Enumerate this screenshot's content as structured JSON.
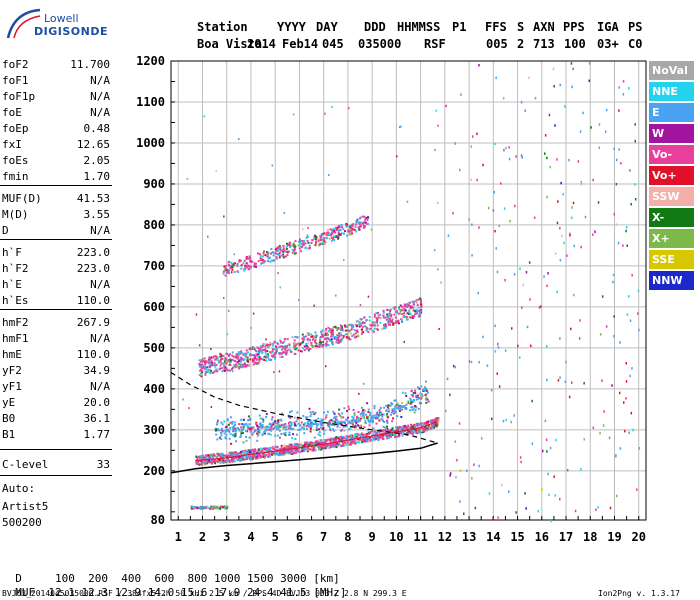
{
  "logo": {
    "line1": "Lowell",
    "line2": "DIGISONDE"
  },
  "header": {
    "labels": [
      "Station",
      "YYYY",
      "DAY",
      "DDD",
      "HHMMSS",
      "P1",
      "FFS",
      "S",
      "AXN",
      "PPS",
      "IGA",
      "PS"
    ],
    "values": [
      "Boa Vista",
      "2014",
      "Feb14",
      "045",
      "035000",
      "RSF",
      "005",
      "2",
      "713",
      "100",
      "03+",
      "C0"
    ]
  },
  "params": [
    {
      "k": "foF2",
      "v": "11.700"
    },
    {
      "k": "foF1",
      "v": "N/A"
    },
    {
      "k": "foF1p",
      "v": "N/A"
    },
    {
      "k": "foE",
      "v": "N/A"
    },
    {
      "k": "foEp",
      "v": "0.48"
    },
    {
      "k": "fxI",
      "v": "12.65"
    },
    {
      "k": "foEs",
      "v": "2.05"
    },
    {
      "k": "fmin",
      "v": "1.70"
    },
    {
      "k": "MUF(D)",
      "v": "41.53"
    },
    {
      "k": "M(D)",
      "v": "3.55"
    },
    {
      "k": "D",
      "v": "N/A"
    },
    {
      "k": "h`F",
      "v": "223.0"
    },
    {
      "k": "h`F2",
      "v": "223.0"
    },
    {
      "k": "h`E",
      "v": "N/A"
    },
    {
      "k": "h`Es",
      "v": "110.0"
    },
    {
      "k": "hmF2",
      "v": "267.9"
    },
    {
      "k": "hmF1",
      "v": "N/A"
    },
    {
      "k": "hmE",
      "v": "110.0"
    },
    {
      "k": "yF2",
      "v": "34.9"
    },
    {
      "k": "yF1",
      "v": "N/A"
    },
    {
      "k": "yE",
      "v": "20.0"
    },
    {
      "k": "B0",
      "v": "36.1"
    },
    {
      "k": "B1",
      "v": "1.77"
    },
    {
      "k": "C-level",
      "v": "33"
    }
  ],
  "auto": {
    "line1": "Auto:",
    "line2": "Artist5",
    "line3": "500200"
  },
  "legend": [
    {
      "label": "NoVal",
      "color": "#a8a8a8"
    },
    {
      "label": "NNE",
      "color": "#22d3ee"
    },
    {
      "label": "E",
      "color": "#4aa3f0"
    },
    {
      "label": "W",
      "color": "#a0149e"
    },
    {
      "label": "Vo-",
      "color": "#e8409a"
    },
    {
      "label": "Vo+",
      "color": "#e0102a"
    },
    {
      "label": "SSW",
      "color": "#f4b0a8"
    },
    {
      "label": "X-",
      "color": "#137a13"
    },
    {
      "label": "X+",
      "color": "#7cb84a"
    },
    {
      "label": "SSE",
      "color": "#d6c800"
    },
    {
      "label": "NNW",
      "color": "#1c28c8"
    }
  ],
  "muf_table": {
    "d_label": "D",
    "d_values": "100  200  400  600  800 1000 1500 3000 [km]",
    "muf_label": "MUF",
    "muf_values": "12.1 12.3 12.9 14.0 15.6 17.9 24.4 41.5 [MHz]"
  },
  "footer": {
    "left": "BVJ03_2014045035000.RSF / 384fx512h 50 kHz 2.5 km / DPS-4D BVJ03 003 / 2.8 N 299.3 E",
    "right": "Ion2Png v. 1.3.17"
  },
  "chart_data": {
    "type": "scatter",
    "xlabel": "",
    "ylabel": "",
    "xlim": [
      0.7,
      20.3
    ],
    "ylim": [
      80,
      1200
    ],
    "x_ticks": [
      1,
      2,
      3,
      4,
      5,
      6,
      7,
      8,
      9,
      10,
      11,
      12,
      13,
      14,
      15,
      16,
      17,
      18,
      19,
      20
    ],
    "y_ticks": [
      80,
      200,
      300,
      400,
      500,
      600,
      700,
      800,
      900,
      1000,
      1100,
      1200
    ],
    "grid": true,
    "traces": [
      {
        "name": "F2 trace (1st hop)",
        "x": [
          1.7,
          3,
          4,
          5,
          6,
          7,
          8,
          9,
          10,
          11,
          11.7
        ],
        "y": [
          225,
          232,
          240,
          248,
          256,
          265,
          275,
          285,
          295,
          305,
          320
        ]
      },
      {
        "name": "F2 trace (2nd hop)",
        "x": [
          1.8,
          3,
          4,
          5,
          6,
          7,
          8,
          9,
          10,
          11
        ],
        "y": [
          450,
          465,
          480,
          495,
          510,
          525,
          540,
          560,
          580,
          600
        ]
      },
      {
        "name": "F2 trace (3rd hop)",
        "x": [
          2.8,
          4,
          5,
          6,
          7,
          8,
          8.8
        ],
        "y": [
          690,
          710,
          730,
          750,
          770,
          790,
          810
        ]
      },
      {
        "name": "Es trace",
        "x": [
          1.5,
          2,
          2.5,
          3
        ],
        "y": [
          110,
          110,
          110,
          110
        ]
      },
      {
        "name": "Spread F (E direction)",
        "x": [
          2.5,
          4,
          6,
          8,
          9.5,
          10.5,
          11.3
        ],
        "y": [
          300,
          305,
          312,
          320,
          340,
          365,
          390
        ]
      }
    ],
    "profile_solid": {
      "x": [
        0.7,
        1.7,
        3,
        5,
        7,
        9,
        10,
        11,
        11.7
      ],
      "y": [
        195,
        205,
        213,
        222,
        232,
        242,
        248,
        255,
        267.9
      ]
    },
    "profile_dashed": {
      "x": [
        0.7,
        1.5,
        2.5,
        3.5,
        5,
        7,
        9,
        10.5,
        11.7
      ],
      "y": [
        440,
        410,
        380,
        360,
        340,
        318,
        300,
        288,
        267.9
      ]
    }
  }
}
